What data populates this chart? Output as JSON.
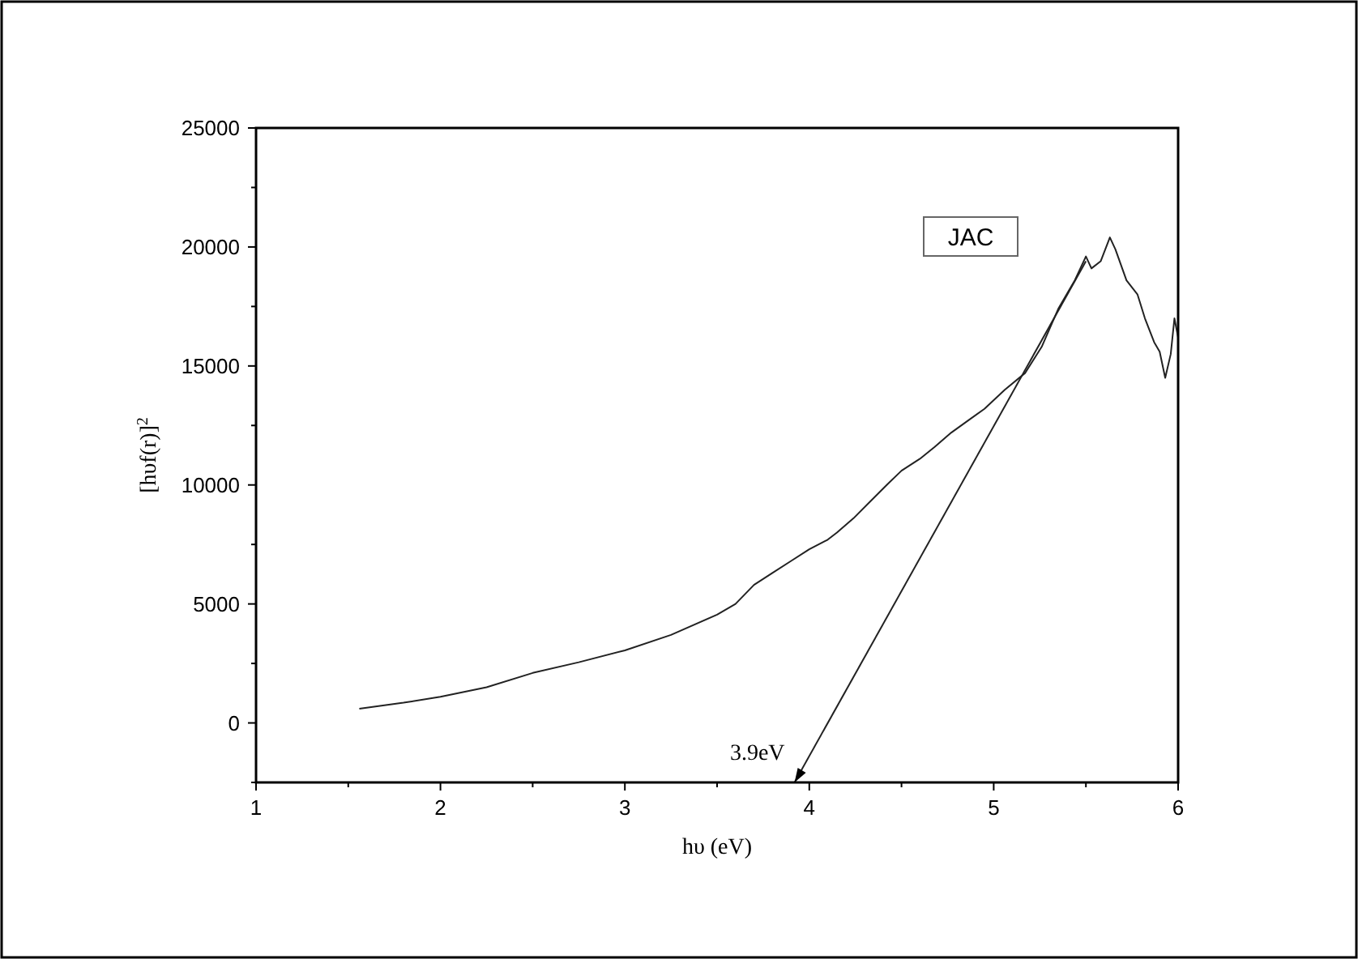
{
  "chart_data": {
    "type": "line",
    "xlabel": "hυ (eV)",
    "ylabel": "[hυf(r)]$^{2}$",
    "xlim": [
      1,
      6
    ],
    "ylim": [
      -2500,
      25000
    ],
    "xticks": [
      1,
      {
        "value": 1.5,
        "label": null
      },
      2,
      {
        "value": 2.5,
        "label": null
      },
      3,
      {
        "value": 3.5,
        "label": null
      },
      4,
      {
        "value": 4.5,
        "label": null
      },
      5,
      {
        "value": 5.5,
        "label": null
      },
      6
    ],
    "yticks": [
      {
        "value": -2500,
        "label": null
      },
      0,
      {
        "value": 2500,
        "label": null
      },
      5000,
      {
        "value": 7500,
        "label": null
      },
      10000,
      {
        "value": 12500,
        "label": null
      },
      15000,
      {
        "value": 17500,
        "label": null
      },
      20000,
      {
        "value": 22500,
        "label": null
      },
      25000
    ],
    "grid": false,
    "marker": "none",
    "line_style": "solid",
    "annotations": [
      "JAC",
      "3.9eV"
    ],
    "series": [
      {
        "color": "#222222",
        "x": [
          1.56,
          1.8,
          2,
          2.25,
          2.5,
          2.75,
          3,
          3.25,
          3.5,
          3.6,
          3.7,
          3.8,
          3.9,
          4.0,
          4.1,
          4.15,
          4.24,
          4.33,
          4.42,
          4.5,
          4.6,
          4.68,
          4.77,
          4.86,
          4.95,
          5.06,
          5.17,
          5.26,
          5.35,
          5.44,
          5.5,
          5.53,
          5.58,
          5.63,
          5.66,
          5.72,
          5.78,
          5.82,
          5.87,
          5.9,
          5.93,
          5.96,
          5.98,
          6.0
        ],
        "values": [
          600,
          850,
          1100,
          1500,
          2100,
          2550,
          3050,
          3700,
          4550,
          5000,
          5800,
          6300,
          6800,
          7300,
          7700,
          8000,
          8600,
          9300,
          10000,
          10600,
          11100,
          11600,
          12200,
          12700,
          13200,
          14000,
          14700,
          15800,
          17400,
          18600,
          19600,
          19100,
          19400,
          20400,
          19900,
          18600,
          18000,
          17000,
          16000,
          15600,
          14500,
          15500,
          17000,
          16200
        ]
      },
      {
        "type": "line",
        "color": "#222222",
        "x": [
          3.92,
          5.5
        ],
        "values": [
          -2500,
          19400
        ]
      }
    ]
  }
}
